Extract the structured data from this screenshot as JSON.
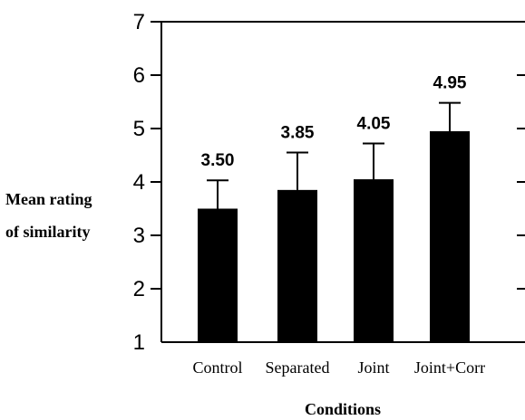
{
  "chart_data": {
    "type": "bar",
    "categories": [
      "Control",
      "Separated",
      "Joint",
      "Joint+Corr"
    ],
    "values": [
      3.5,
      3.85,
      4.05,
      4.95
    ],
    "value_labels": [
      "3.50",
      "3.85",
      "4.05",
      "4.95"
    ],
    "error_upper": [
      4.03,
      4.55,
      4.72,
      5.48
    ],
    "xlabel": "Conditions",
    "ylabel_lines": [
      "Mean rating",
      "of similarity"
    ],
    "ylim": [
      1,
      7
    ],
    "yticks": [
      "1",
      "2",
      "3",
      "4",
      "5",
      "6",
      "7"
    ],
    "grid": false,
    "legend": "none",
    "colors": {
      "bar": "#000000",
      "axis": "#000000",
      "background": "#ffffff"
    }
  }
}
